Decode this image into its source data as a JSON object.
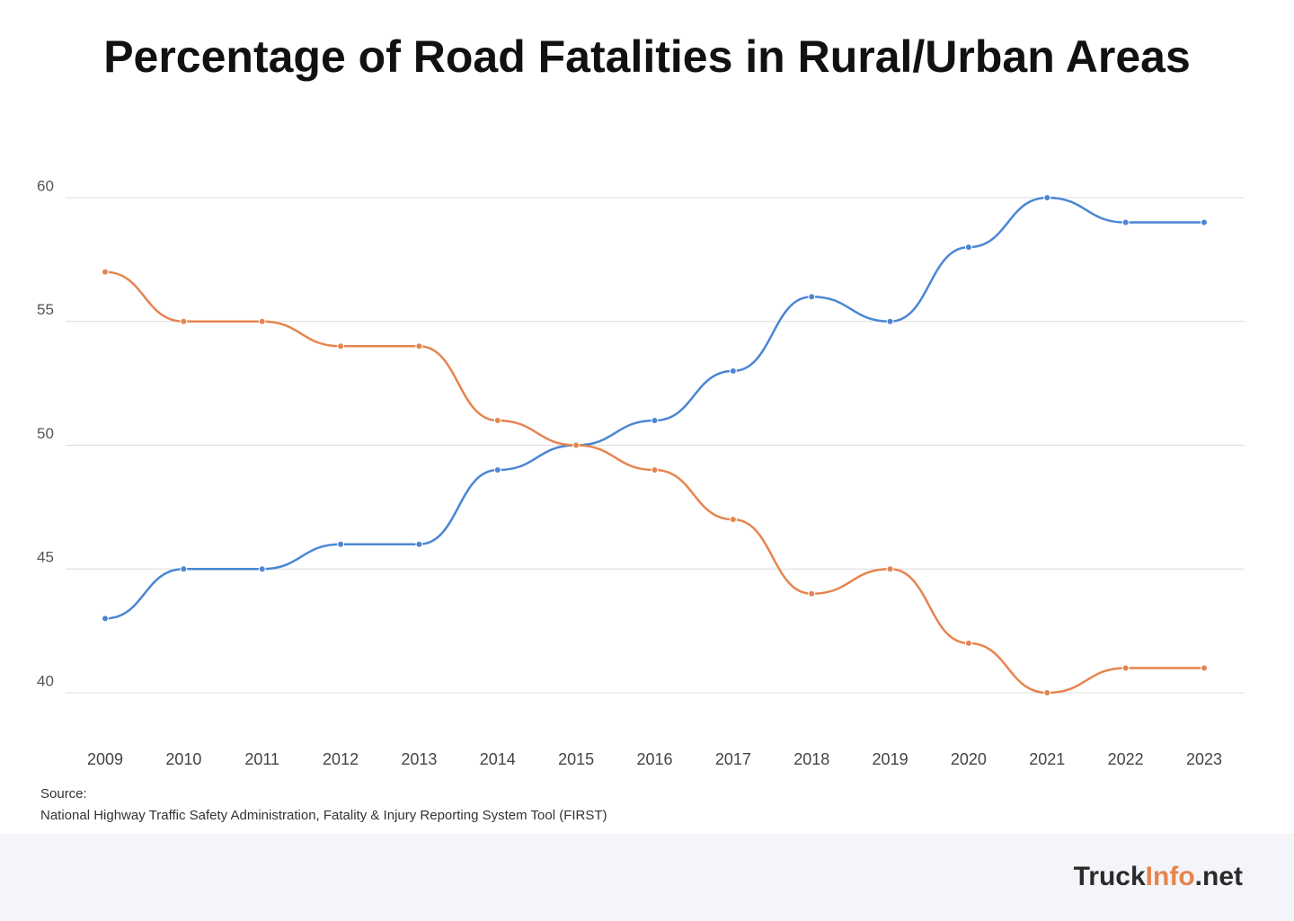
{
  "chart_data": {
    "type": "line",
    "title": "Percentage of Road Fatalities in Rural/Urban Areas",
    "categories": [
      "2009",
      "2010",
      "2011",
      "2012",
      "2013",
      "2014",
      "2015",
      "2016",
      "2017",
      "2018",
      "2019",
      "2020",
      "2021",
      "2022",
      "2023"
    ],
    "series": [
      {
        "color": "#4a86d4",
        "values": [
          43,
          45,
          45,
          46,
          46,
          49,
          50,
          51,
          53,
          56,
          55,
          58,
          60,
          59,
          59
        ]
      },
      {
        "color": "#e6844f",
        "values": [
          57,
          55,
          55,
          54,
          54,
          51,
          50,
          49,
          47,
          44,
          45,
          42,
          40,
          41,
          41
        ]
      }
    ],
    "ylim": [
      40,
      60
    ],
    "yticks": [
      40,
      45,
      50,
      55,
      60
    ],
    "grid": true,
    "source_label": "Source:",
    "source": "National Highway Traffic Safety Administration, Fatality & Injury Reporting System Tool (FIRST)"
  },
  "footer": {
    "brand": [
      "Truck",
      "Info",
      ".net"
    ]
  }
}
